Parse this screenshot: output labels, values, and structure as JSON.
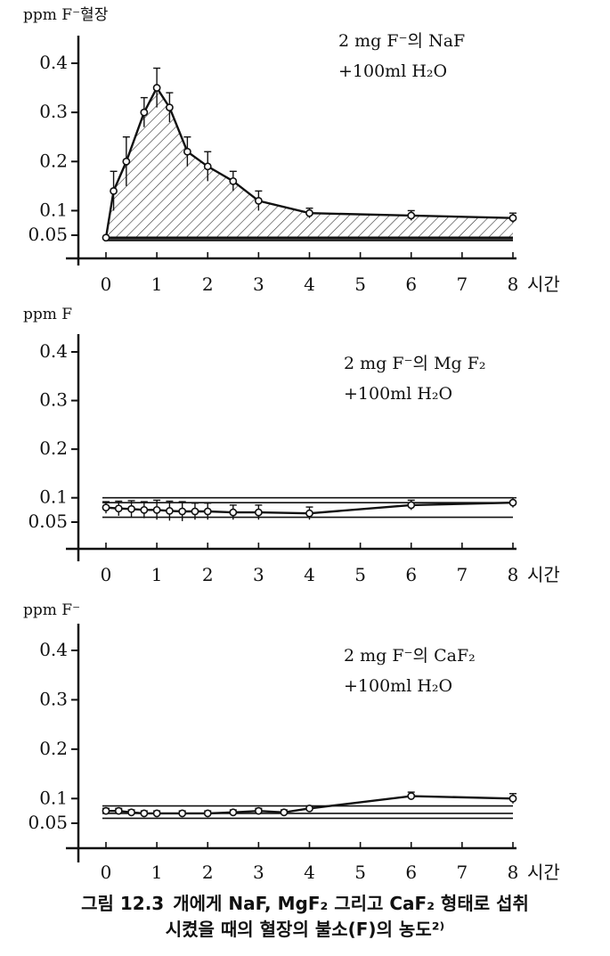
{
  "caption": {
    "number": "그림 12.3",
    "line1": "개에게 NaF, MgF₂ 그리고 CaF₂ 형태로 섭취",
    "line2": "시켰을 때의 혈장의 불소(F)의 농도²⁾"
  },
  "colors": {
    "ink": "#111111",
    "hatch": "#333333"
  },
  "chart_data": [
    {
      "type": "line",
      "ylabel": "ppm F⁻혈장",
      "xlabel": "시간",
      "annotation": [
        "2 mg F⁻의 NaF",
        "+100ml H₂O"
      ],
      "x_ticks": [
        0,
        1,
        2,
        3,
        4,
        5,
        6,
        7,
        8
      ],
      "y_ticks": [
        0.05,
        0.1,
        0.2,
        0.3,
        0.4
      ],
      "y_tick_labels": [
        "0.05",
        "0.1",
        "0.2",
        "0.3",
        "0.4"
      ],
      "xlim": [
        -0.5,
        8
      ],
      "ylim": [
        0,
        0.45
      ],
      "series": [
        {
          "x": [
            0,
            0.15,
            0.4,
            0.75,
            1,
            1.25,
            1.6,
            2,
            2.5,
            3,
            4,
            6,
            8
          ],
          "y": [
            0.045,
            0.14,
            0.2,
            0.3,
            0.35,
            0.31,
            0.22,
            0.19,
            0.16,
            0.12,
            0.095,
            0.09,
            0.085
          ],
          "err": [
            0,
            0.04,
            0.05,
            0.03,
            0.04,
            0.03,
            0.03,
            0.03,
            0.02,
            0.02,
            0.01,
            0.01,
            0.01
          ],
          "shaded": true
        }
      ],
      "baseline_lines": [
        0.045,
        0.04
      ]
    },
    {
      "type": "line",
      "ylabel": "ppm F",
      "xlabel": "시간",
      "annotation": [
        "2 mg F⁻의 Mg F₂",
        "+100ml H₂O"
      ],
      "x_ticks": [
        0,
        1,
        2,
        3,
        4,
        5,
        6,
        7,
        8
      ],
      "y_ticks": [
        0.05,
        0.1,
        0.2,
        0.3,
        0.4
      ],
      "y_tick_labels": [
        "0.05",
        "0.1",
        "0.2",
        "0.3",
        "0.4"
      ],
      "xlim": [
        -0.5,
        8
      ],
      "ylim": [
        0,
        0.45
      ],
      "series": [
        {
          "x": [
            0,
            0.25,
            0.5,
            0.75,
            1,
            1.25,
            1.5,
            1.75,
            2,
            2.5,
            3,
            4,
            6,
            8
          ],
          "y": [
            0.08,
            0.078,
            0.077,
            0.075,
            0.075,
            0.073,
            0.072,
            0.072,
            0.072,
            0.07,
            0.07,
            0.068,
            0.085,
            0.09
          ],
          "err": [
            0.012,
            0.015,
            0.017,
            0.017,
            0.02,
            0.02,
            0.02,
            0.017,
            0.017,
            0.015,
            0.015,
            0.013,
            0.01,
            0.01
          ],
          "shaded": false
        }
      ],
      "reference_lines": [
        0.1,
        0.09,
        0.06
      ]
    },
    {
      "type": "line",
      "ylabel": "ppm F⁻",
      "xlabel": "시간",
      "annotation": [
        "2 mg F⁻의 CaF₂",
        "+100ml H₂O"
      ],
      "x_ticks": [
        0,
        1,
        2,
        3,
        4,
        5,
        6,
        7,
        8
      ],
      "y_ticks": [
        0.05,
        0.1,
        0.2,
        0.3,
        0.4
      ],
      "y_tick_labels": [
        "0.05",
        "0.1",
        "0.2",
        "0.3",
        "0.4"
      ],
      "y_tick_labels_display": [
        "0.05",
        "0.1",
        "0.2",
        "0.3",
        "0.4"
      ],
      "xlim": [
        -0.5,
        8
      ],
      "ylim": [
        0,
        0.45
      ],
      "series": [
        {
          "x": [
            0,
            0.25,
            0.5,
            0.75,
            1,
            1.5,
            2,
            2.5,
            3,
            3.5,
            4,
            6,
            8
          ],
          "y": [
            0.075,
            0.075,
            0.072,
            0.07,
            0.07,
            0.07,
            0.07,
            0.072,
            0.075,
            0.072,
            0.08,
            0.105,
            0.1
          ],
          "err": [
            0.005,
            0.005,
            0.005,
            0.005,
            0.005,
            0.005,
            0.005,
            0.005,
            0.005,
            0.005,
            0.005,
            0.008,
            0.01
          ],
          "shaded": false
        }
      ],
      "reference_lines": [
        0.085,
        0.07,
        0.06
      ]
    }
  ]
}
